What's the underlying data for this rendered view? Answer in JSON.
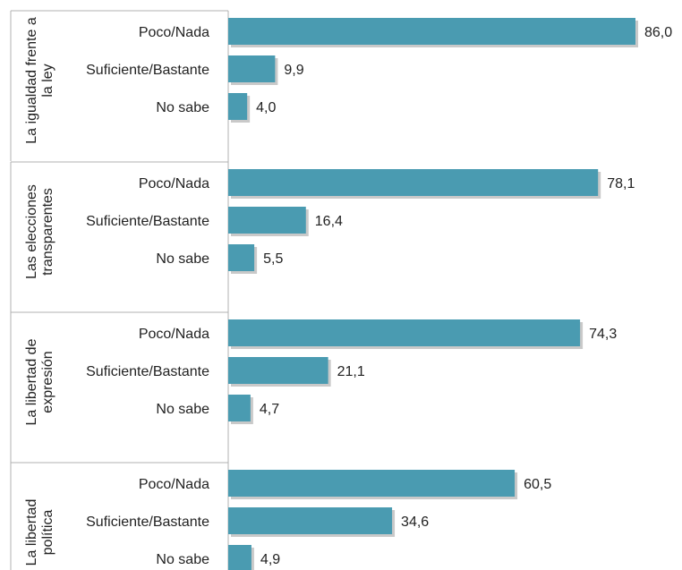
{
  "chart_data": {
    "type": "bar",
    "orientation": "horizontal",
    "bar_color": "#4a9bb1",
    "shadow_color": "#c9c9c9",
    "axis_color": "#b0b0b0",
    "xlim": [
      0,
      86
    ],
    "groups": [
      {
        "name_lines": [
          "La igualdad frente a",
          "la ley"
        ],
        "categories": [
          "Poco/Nada",
          "Suficiente/Bastante",
          "No sabe"
        ],
        "values": [
          86.0,
          9.9,
          4.0
        ],
        "value_labels": [
          "86,0",
          "9,9",
          "4,0"
        ]
      },
      {
        "name_lines": [
          "Las elecciones",
          "transparentes"
        ],
        "categories": [
          "Poco/Nada",
          "Suficiente/Bastante",
          "No sabe"
        ],
        "values": [
          78.1,
          16.4,
          5.5
        ],
        "value_labels": [
          "78,1",
          "16,4",
          "5,5"
        ]
      },
      {
        "name_lines": [
          "La libertad de",
          "expresión"
        ],
        "categories": [
          "Poco/Nada",
          "Suficiente/Bastante",
          "No sabe"
        ],
        "values": [
          74.3,
          21.1,
          4.7
        ],
        "value_labels": [
          "74,3",
          "21,1",
          "4,7"
        ]
      },
      {
        "name_lines": [
          "La libertad",
          "política"
        ],
        "categories": [
          "Poco/Nada",
          "Suficiente/Bastante",
          "No sabe"
        ],
        "values": [
          60.5,
          34.6,
          4.9
        ],
        "value_labels": [
          "60,5",
          "34,6",
          "4,9"
        ]
      }
    ]
  }
}
